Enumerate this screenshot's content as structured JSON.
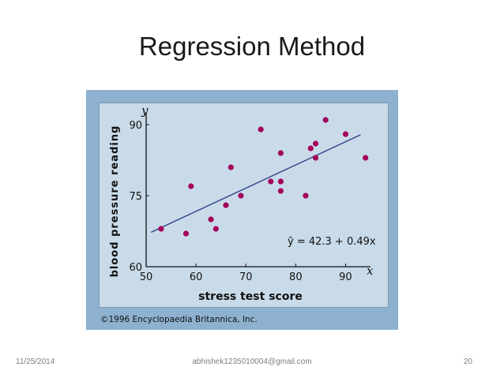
{
  "slide": {
    "title": "Regression Method",
    "footer_date": "11/25/2014",
    "footer_email": "abhishek1235010004@gmail.com",
    "footer_page": "20"
  },
  "figure": {
    "copyright": "©1996 Encyclopaedia Britannica, Inc.",
    "colors": {
      "outer": "#8db1cf",
      "panel": "#c9dbe9",
      "points": "#a3005a",
      "line": "#3a4b8c"
    }
  },
  "chart_data": {
    "type": "scatter",
    "title": "",
    "xlabel": "stress test score",
    "ylabel": "blood pressure reading",
    "x_axis_letter": "x",
    "y_axis_letter": "y",
    "xlim": [
      50,
      95
    ],
    "ylim": [
      60,
      92
    ],
    "xticks": [
      50,
      60,
      70,
      80,
      90
    ],
    "yticks": [
      60,
      75,
      90
    ],
    "grid": false,
    "equation": "ŷ = 42.3 + 0.49x",
    "regression_line": {
      "intercept": 42.3,
      "slope": 0.49,
      "x_range": [
        51,
        93
      ]
    },
    "points": [
      {
        "x": 53,
        "y": 68
      },
      {
        "x": 58,
        "y": 67
      },
      {
        "x": 59,
        "y": 77
      },
      {
        "x": 63,
        "y": 70
      },
      {
        "x": 64,
        "y": 68
      },
      {
        "x": 66,
        "y": 73
      },
      {
        "x": 67,
        "y": 81
      },
      {
        "x": 69,
        "y": 75
      },
      {
        "x": 73,
        "y": 89
      },
      {
        "x": 75,
        "y": 78
      },
      {
        "x": 77,
        "y": 84
      },
      {
        "x": 77,
        "y": 78
      },
      {
        "x": 77,
        "y": 76
      },
      {
        "x": 82,
        "y": 75
      },
      {
        "x": 83,
        "y": 85
      },
      {
        "x": 84,
        "y": 86
      },
      {
        "x": 84,
        "y": 83
      },
      {
        "x": 86,
        "y": 91
      },
      {
        "x": 90,
        "y": 88
      },
      {
        "x": 94,
        "y": 83
      }
    ]
  }
}
